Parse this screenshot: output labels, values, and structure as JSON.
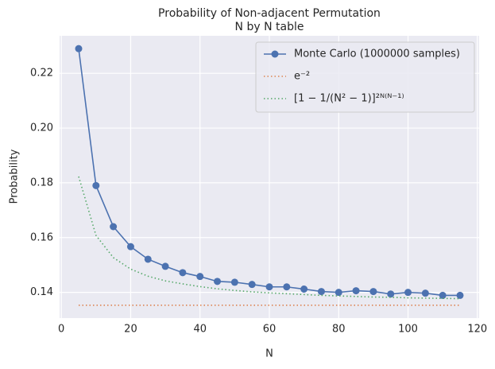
{
  "chart_data": {
    "type": "line",
    "title": "Probability of Non-adjacent Permutation",
    "subtitle": "N by N table",
    "x_label": "N",
    "y_label": "Probability",
    "x": [
      5,
      10,
      15,
      20,
      25,
      30,
      35,
      40,
      45,
      50,
      55,
      60,
      65,
      70,
      75,
      80,
      85,
      90,
      95,
      100,
      105,
      110,
      115
    ],
    "series": [
      {
        "name": "Monte Carlo (1000000 samples)",
        "color": "#4c72b0",
        "style": "solid",
        "marker": true,
        "values": [
          0.229,
          0.179,
          0.164,
          0.1567,
          0.1521,
          0.1495,
          0.1472,
          0.1458,
          0.144,
          0.1437,
          0.1429,
          0.142,
          0.142,
          0.1412,
          0.1403,
          0.14,
          0.1406,
          0.1403,
          0.1394,
          0.14,
          0.1397,
          0.1389,
          0.1389
        ]
      },
      {
        "name": "e⁻²",
        "color": "#dd8452",
        "style": "dotted",
        "marker": false,
        "values": [
          0.1353,
          0.1353,
          0.1353,
          0.1353,
          0.1353,
          0.1353,
          0.1353,
          0.1353,
          0.1353,
          0.1353,
          0.1353,
          0.1353,
          0.1353,
          0.1353,
          0.1353,
          0.1353,
          0.1353,
          0.1353,
          0.1353,
          0.1353,
          0.1353,
          0.1353,
          0.1353
        ]
      },
      {
        "name": "[1 − 1/(N² − 1)]²ᴺ⁽ᴺ⁻¹⁾",
        "color": "#55a868",
        "style": "dotted",
        "marker": false,
        "values": [
          0.1823,
          0.1608,
          0.1527,
          0.1485,
          0.1459,
          0.1442,
          0.1431,
          0.1421,
          0.1413,
          0.1407,
          0.1402,
          0.1398,
          0.1395,
          0.1392,
          0.1389,
          0.1387,
          0.1385,
          0.1383,
          0.1382,
          0.138,
          0.1379,
          0.1378,
          0.1377
        ]
      }
    ],
    "xlim": [
      -0.5,
      120.5
    ],
    "ylim": [
      0.1306,
      0.2337
    ],
    "xticks": [
      0,
      20,
      40,
      60,
      80,
      100,
      120
    ],
    "yticks": [
      0.14,
      0.16,
      0.18,
      {
        "value": 0.2,
        "label": "0.20"
      },
      0.22
    ],
    "grid": true,
    "legend": "upper right"
  }
}
